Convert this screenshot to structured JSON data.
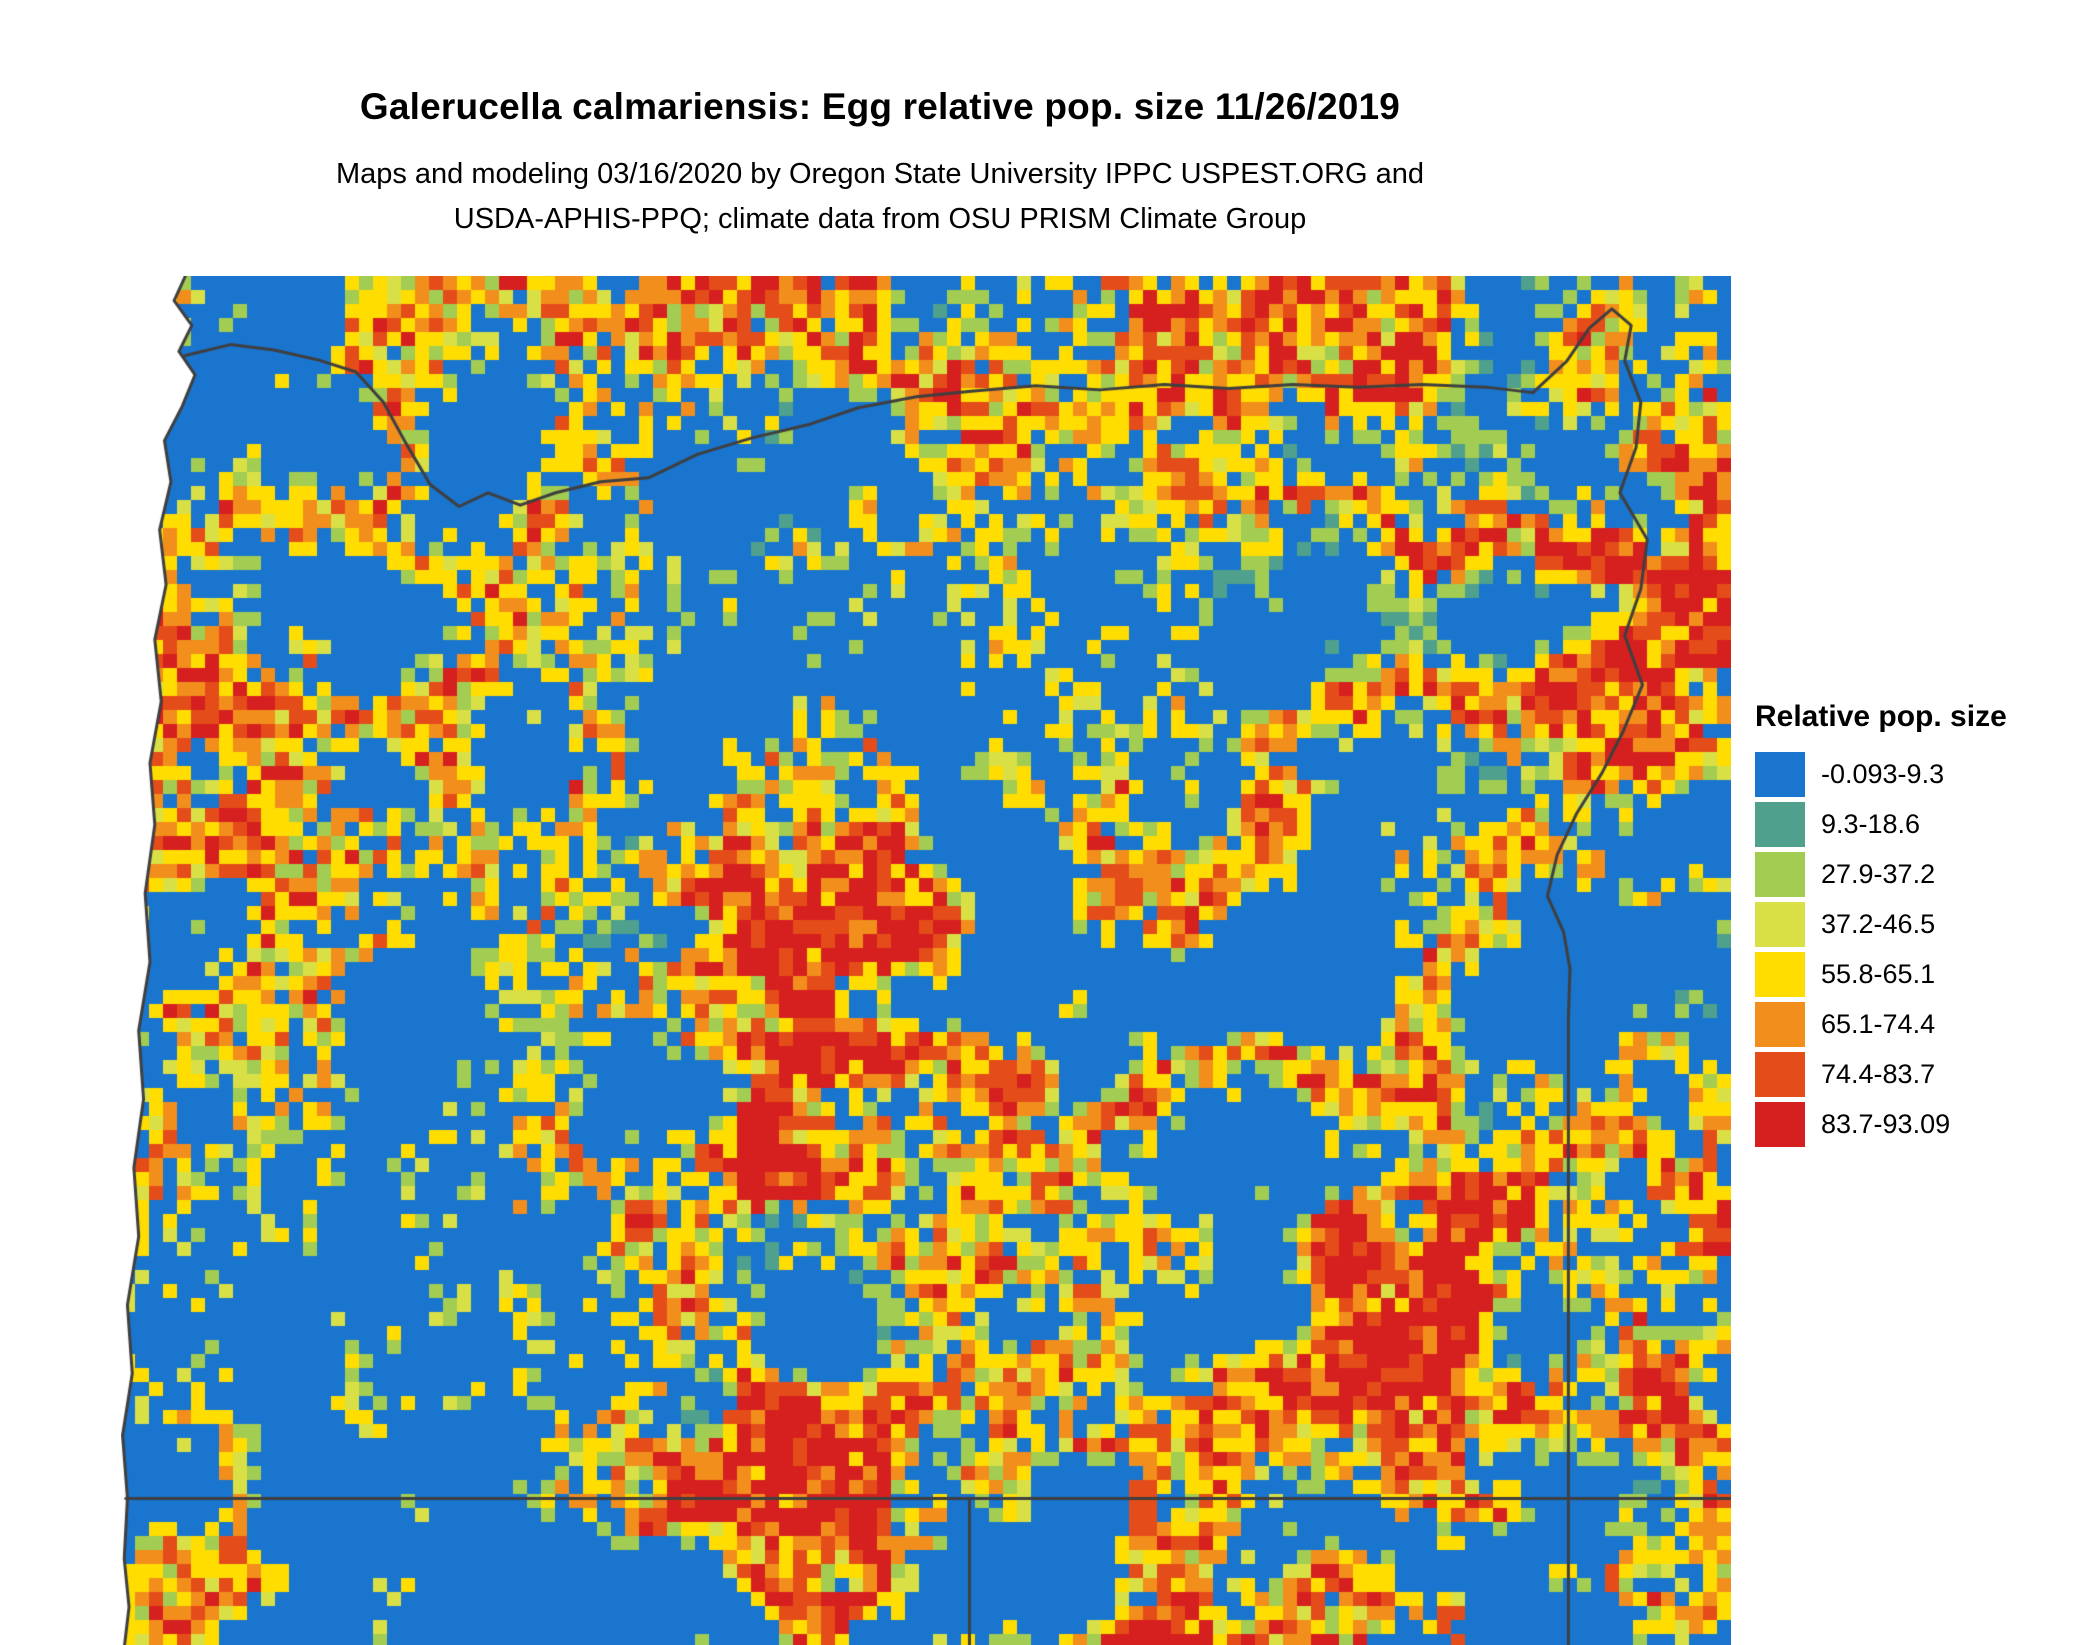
{
  "header": {
    "title": "Galerucella calmariensis: Egg relative pop. size 11/26/2019",
    "subtitle_line1": "Maps and modeling 03/16/2020 by Oregon State University IPPC USPEST.ORG and",
    "subtitle_line2": "USDA-APHIS-PPQ; climate data from OSU PRISM Climate Group"
  },
  "legend": {
    "title": "Relative pop. size",
    "items": [
      {
        "label": "-0.093-9.3",
        "color": "#1A75CF"
      },
      {
        "label": "9.3-18.6",
        "color": "#4FA08C"
      },
      {
        "label": "27.9-37.2",
        "color": "#A3CC52"
      },
      {
        "label": "37.2-46.5",
        "color": "#D9E046"
      },
      {
        "label": "55.8-65.1",
        "color": "#FFDD00"
      },
      {
        "label": "65.1-74.4",
        "color": "#F28E1C"
      },
      {
        "label": "74.4-83.7",
        "color": "#E44D1A"
      },
      {
        "label": "83.7-93.09",
        "color": "#D62020"
      }
    ]
  },
  "map": {
    "region": "Oregon",
    "border_color": "#3f3f3f",
    "background": "#ffffff",
    "cell_size": 14,
    "columns": 115,
    "rows": 98,
    "seed": 20191126
  }
}
